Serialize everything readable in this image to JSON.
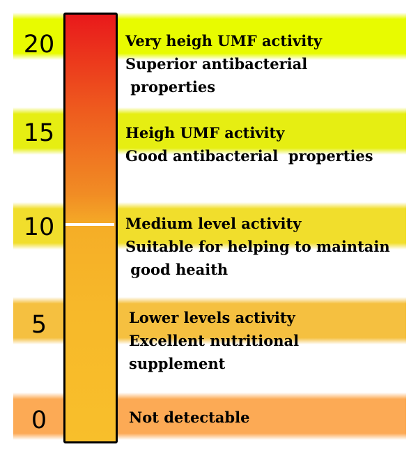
{
  "scale": [
    {
      "value": "20",
      "band_color": "#e8fb00",
      "lines": [
        "Very heigh UMF activity",
        "Superior  antibacterial",
        " properties"
      ]
    },
    {
      "value": "15",
      "band_color": "#e6ee12",
      "lines": [
        "Heigh UMF activity",
        "Good antibacterial  properties"
      ]
    },
    {
      "value": "10",
      "band_color": "#f1de2c",
      "lines": [
        "Medium level activity",
        "Suitable for helping to maintain",
        " good heaith"
      ]
    },
    {
      "value": "5",
      "band_color": "#f5c040",
      "lines": [
        "Lower levels activity",
        "Excellent nutritional",
        "supplement"
      ]
    },
    {
      "value": "0",
      "band_color": "#fcaa55",
      "lines": [
        "Not detectable"
      ]
    }
  ],
  "thermometer": {
    "top_color": "#e9191b",
    "bottom_color": "#f8bf2b",
    "marker_color": "#ffffff"
  }
}
